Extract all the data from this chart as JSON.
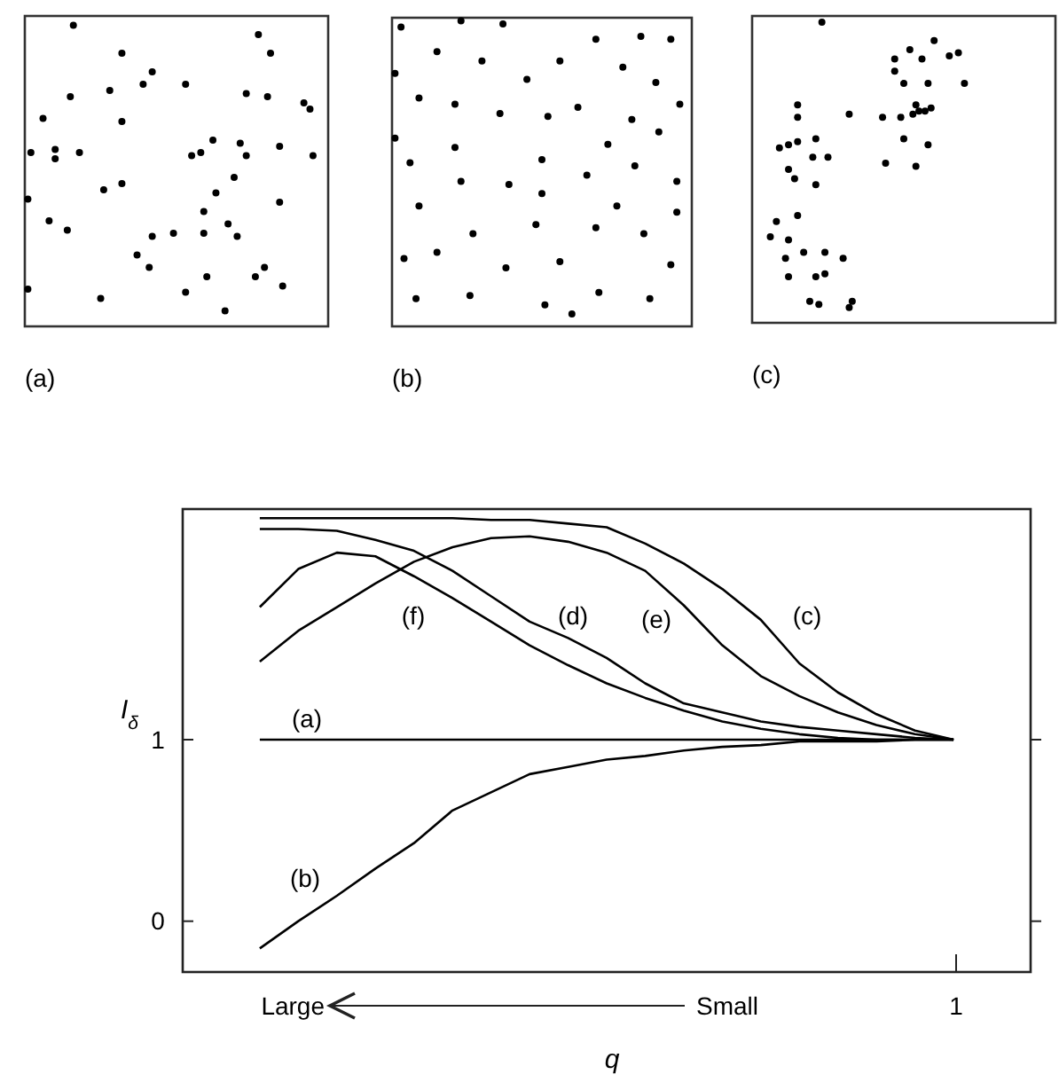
{
  "chart_data": [
    {
      "type": "other",
      "title": "(a)"
    },
    {
      "type": "other",
      "title": "(b)"
    },
    {
      "type": "other",
      "title": "(c)"
    },
    {
      "type": "line",
      "xlabel": "q",
      "ylabel": "I$_{δ}$",
      "ylim": [
        -0.28,
        2.27
      ],
      "yticks": [
        0,
        1
      ],
      "grid": false,
      "marker": "none",
      "line_style": "solid",
      "categories": [
        null,
        null,
        null,
        null,
        null,
        null,
        null,
        null,
        null,
        null,
        null,
        null,
        null,
        null,
        null,
        null,
        null,
        null,
        null,
        null,
        null,
        null,
        null
      ],
      "annotations": [
        "(a)",
        "(b)",
        "(c)",
        "(d)",
        "(e)",
        "(f)",
        "Large",
        "Small",
        "1"
      ],
      "series": [
        {
          "color": "#000000",
          "values": [
            null,
            null,
            1,
            1,
            1,
            1,
            1,
            1,
            1,
            1,
            1,
            1,
            1,
            1,
            1,
            1,
            1,
            1,
            1,
            1,
            1,
            null,
            null
          ]
        },
        {
          "color": "#000000",
          "values": [
            null,
            null,
            -0.15,
            0.0,
            0.14,
            0.29,
            0.43,
            0.61,
            0.71,
            0.81,
            0.85,
            0.89,
            0.91,
            0.94,
            0.96,
            0.97,
            0.99,
            0.99,
            0.99,
            1.0,
            1.0,
            null,
            null
          ]
        },
        {
          "color": "#000000",
          "values": [
            null,
            null,
            2.22,
            2.22,
            2.22,
            2.22,
            2.22,
            2.22,
            2.21,
            2.21,
            2.19,
            2.17,
            2.08,
            1.97,
            1.83,
            1.66,
            1.42,
            1.26,
            1.14,
            1.05,
            1.0,
            null,
            null
          ]
        },
        {
          "color": "#000000",
          "values": [
            null,
            null,
            2.16,
            2.16,
            2.15,
            2.1,
            2.04,
            1.93,
            1.79,
            1.65,
            1.56,
            1.45,
            1.31,
            1.2,
            1.15,
            1.1,
            1.07,
            1.05,
            1.03,
            1.01,
            1.0,
            null,
            null
          ]
        },
        {
          "color": "#000000",
          "values": [
            null,
            null,
            1.43,
            1.6,
            1.73,
            1.86,
            1.98,
            2.06,
            2.11,
            2.12,
            2.09,
            2.03,
            1.93,
            1.74,
            1.52,
            1.35,
            1.24,
            1.15,
            1.08,
            1.03,
            1.0,
            null,
            null
          ]
        },
        {
          "color": "#000000",
          "values": [
            null,
            null,
            1.73,
            1.94,
            2.03,
            2.01,
            1.9,
            1.78,
            1.65,
            1.52,
            1.41,
            1.31,
            1.23,
            1.16,
            1.1,
            1.06,
            1.03,
            1.01,
            1.0,
            1.0,
            1.0,
            null,
            null
          ]
        }
      ]
    }
  ]
}
